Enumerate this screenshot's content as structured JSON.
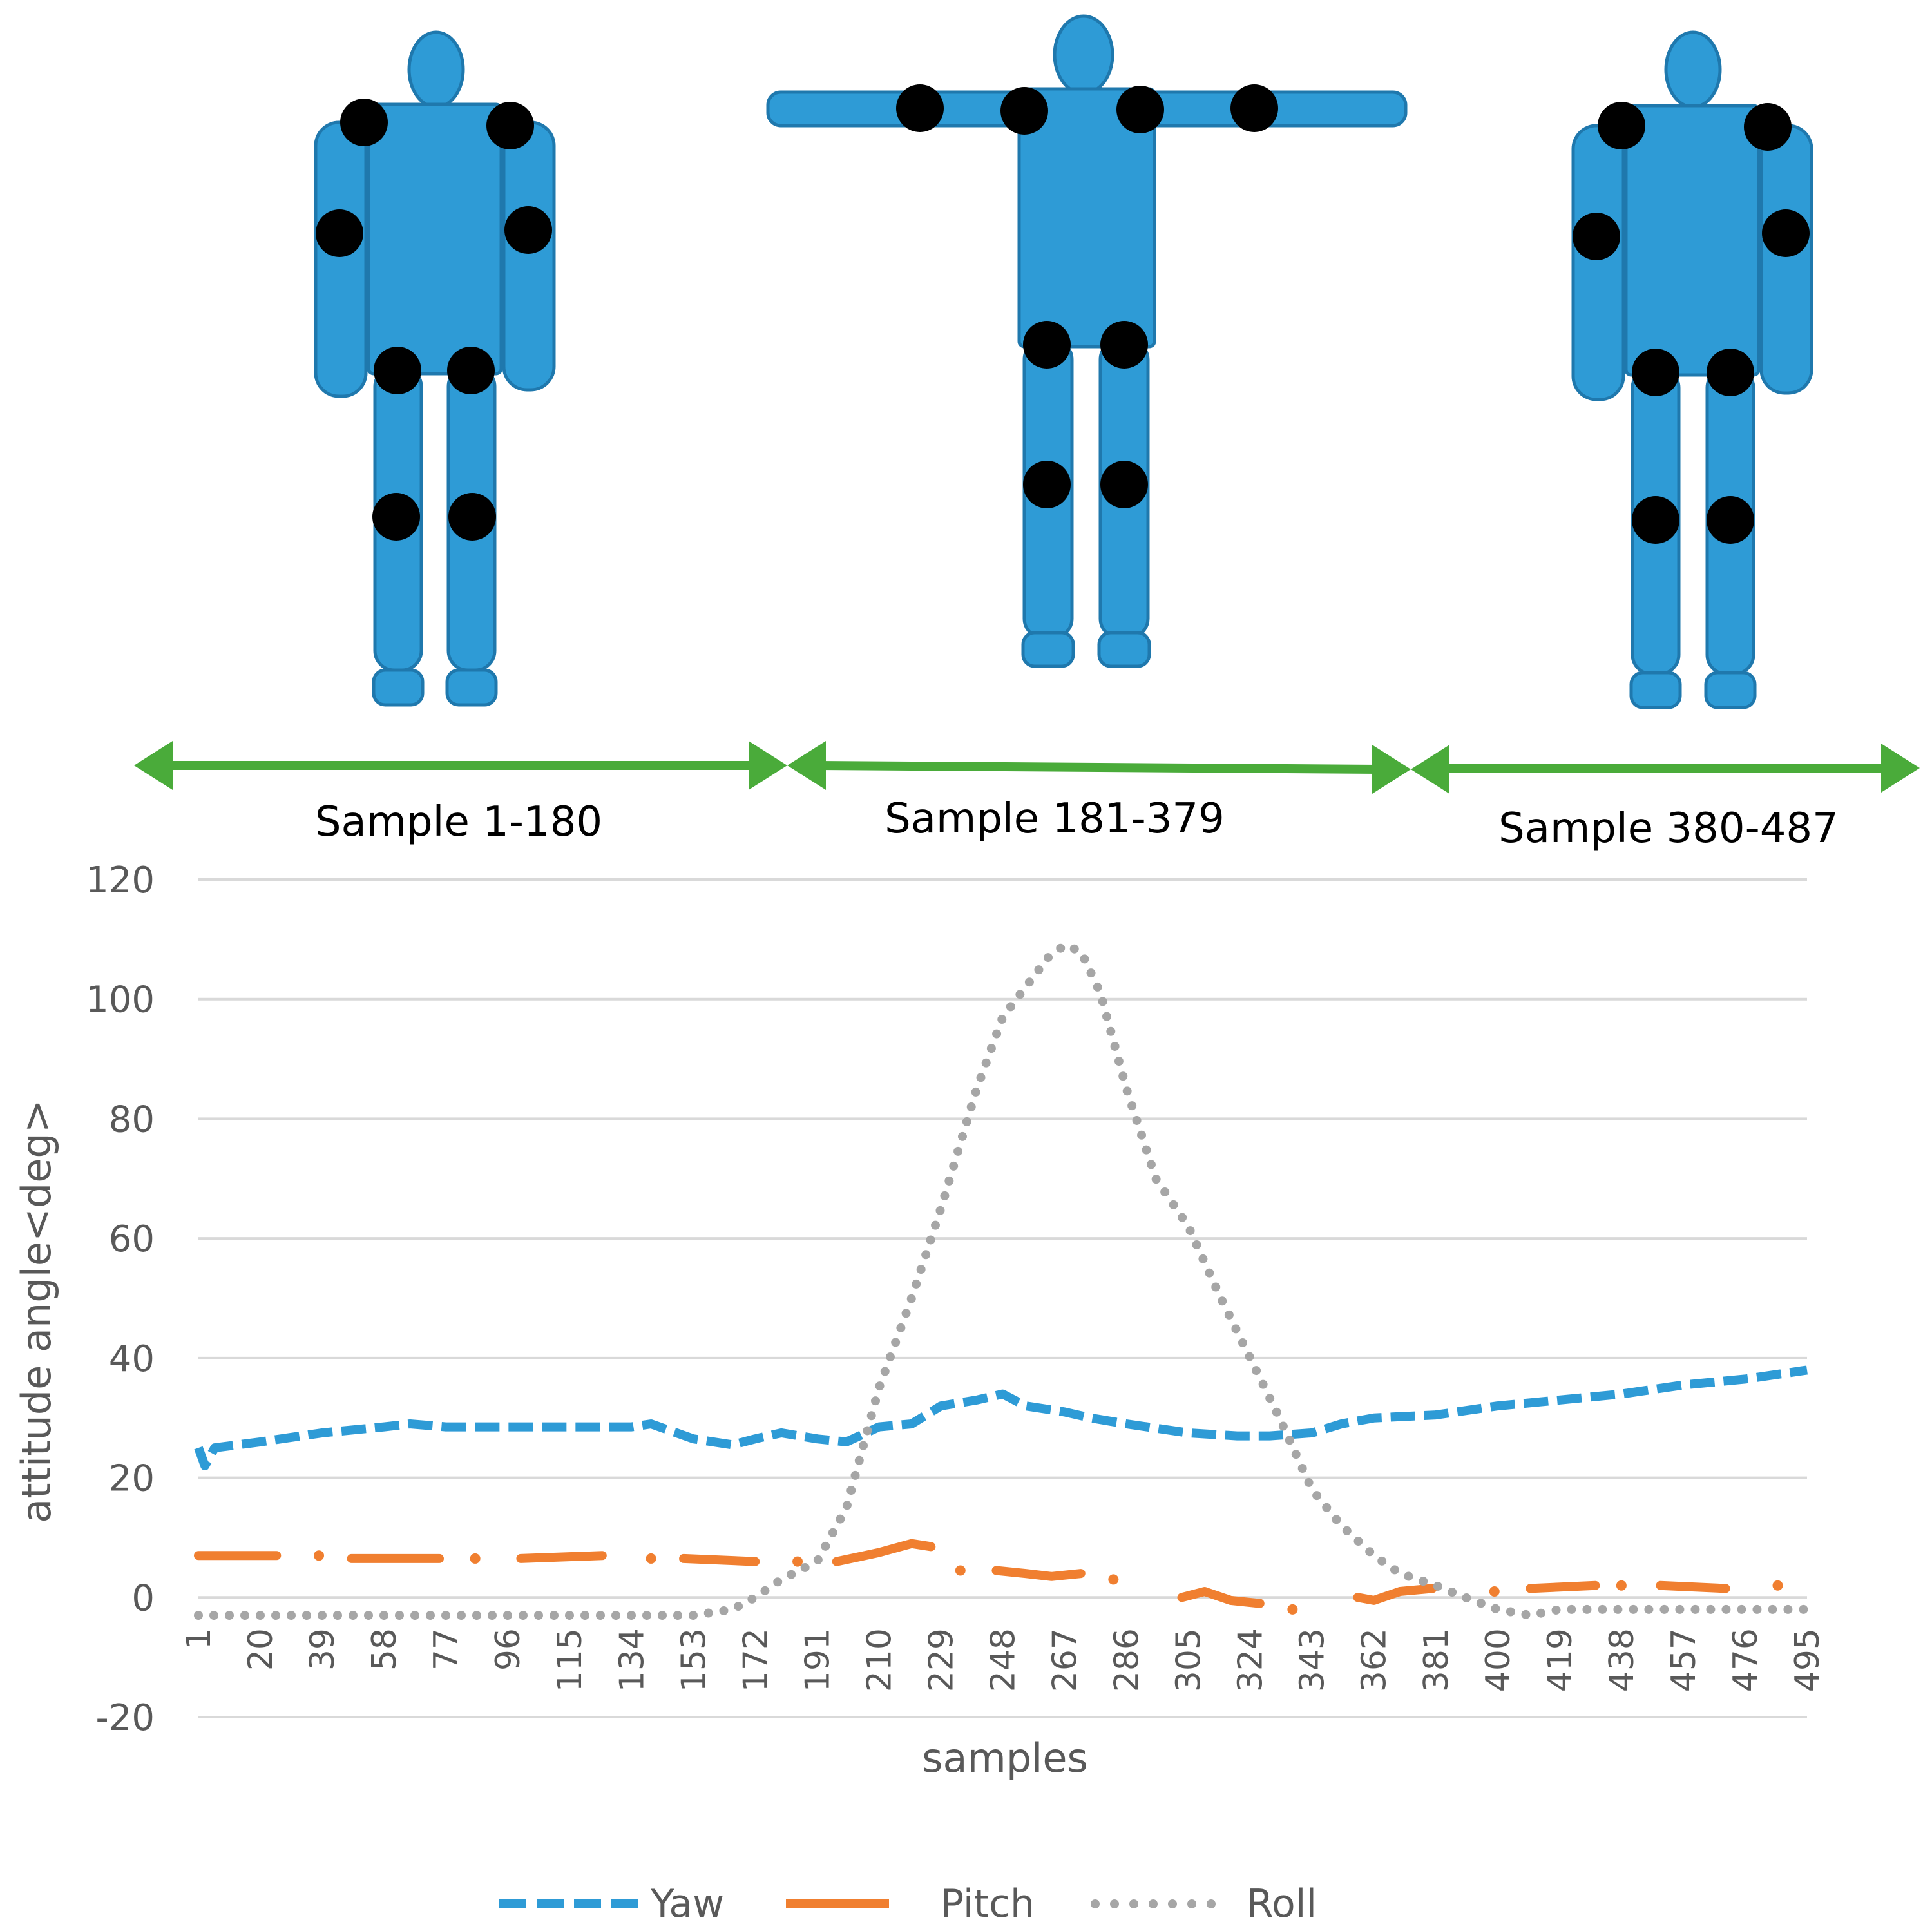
{
  "segments": [
    {
      "label": "Sample 1-180"
    },
    {
      "label": "Sample 181-379"
    },
    {
      "label": "Sample 380-487"
    }
  ],
  "colors": {
    "body": "#2e9bd6",
    "body_outline": "#1f78ad",
    "joint": "#000000",
    "arrow": "#4aab3a",
    "yaw": "#2e9bd6",
    "pitch": "#f07f30",
    "roll": "#a6a6a6",
    "grid": "#d9d9d9",
    "tick_text": "#595959"
  },
  "chart_data": {
    "type": "line",
    "xlabel": "samples",
    "ylabel": "attitude angle<deg>",
    "ylim": [
      -20,
      120
    ],
    "yticks": [
      "120",
      "100",
      "80",
      "60",
      "40",
      "20",
      "0",
      "-20"
    ],
    "xlim": [
      1,
      495
    ],
    "xticks": [
      "1",
      "20",
      "39",
      "58",
      "77",
      "96",
      "115",
      "134",
      "153",
      "172",
      "191",
      "210",
      "229",
      "248",
      "267",
      "286",
      "305",
      "324",
      "343",
      "362",
      "381",
      "400",
      "419",
      "438",
      "457",
      "476",
      "495"
    ],
    "grid": "horizontal",
    "legend": "bottom",
    "series": [
      {
        "name": "Yaw",
        "style": "dashed",
        "points": [
          [
            1,
            25
          ],
          [
            3,
            22
          ],
          [
            6,
            25
          ],
          [
            20,
            26
          ],
          [
            39,
            27.5
          ],
          [
            58,
            28.5
          ],
          [
            66,
            29
          ],
          [
            77,
            28.5
          ],
          [
            96,
            28.5
          ],
          [
            115,
            28.5
          ],
          [
            134,
            28.5
          ],
          [
            140,
            29
          ],
          [
            153,
            26.5
          ],
          [
            165,
            25.5
          ],
          [
            172,
            26.5
          ],
          [
            180,
            27.5
          ],
          [
            191,
            26.5
          ],
          [
            200,
            26
          ],
          [
            210,
            28.5
          ],
          [
            220,
            29
          ],
          [
            229,
            32
          ],
          [
            240,
            33
          ],
          [
            248,
            34
          ],
          [
            255,
            32
          ],
          [
            267,
            31
          ],
          [
            275,
            30
          ],
          [
            286,
            29
          ],
          [
            305,
            27.5
          ],
          [
            320,
            27
          ],
          [
            330,
            27
          ],
          [
            343,
            27.5
          ],
          [
            352,
            29
          ],
          [
            362,
            30
          ],
          [
            381,
            30.5
          ],
          [
            400,
            32
          ],
          [
            419,
            33
          ],
          [
            438,
            34
          ],
          [
            457,
            35.5
          ],
          [
            476,
            36.5
          ],
          [
            495,
            38
          ]
        ]
      },
      {
        "name": "Pitch",
        "style": "solid",
        "points": [
          [
            1,
            7
          ],
          [
            25,
            7
          ],
          [
            null,
            null
          ],
          [
            38,
            7
          ],
          [
            null,
            null
          ],
          [
            48,
            6.5
          ],
          [
            75,
            6.5
          ],
          [
            null,
            null
          ],
          [
            86,
            6.5
          ],
          [
            null,
            null
          ],
          [
            100,
            6.5
          ],
          [
            125,
            7
          ],
          [
            null,
            null
          ],
          [
            140,
            6.5
          ],
          [
            null,
            null
          ],
          [
            150,
            6.5
          ],
          [
            172,
            6
          ],
          [
            null,
            null
          ],
          [
            185,
            6
          ],
          [
            null,
            null
          ],
          [
            197,
            6
          ],
          [
            210,
            7.5
          ],
          [
            220,
            9
          ],
          [
            226,
            8.5
          ],
          [
            null,
            null
          ],
          [
            235,
            4.5
          ],
          [
            null,
            null
          ],
          [
            246,
            4.5
          ],
          [
            255,
            4
          ],
          [
            263,
            3.5
          ],
          [
            272,
            4
          ],
          [
            null,
            null
          ],
          [
            282,
            3
          ],
          [
            null,
            null
          ],
          [
            303,
            0
          ],
          [
            310,
            1
          ],
          [
            318,
            -0.5
          ],
          [
            327,
            -1
          ],
          [
            null,
            null
          ],
          [
            337,
            -2
          ],
          [
            null,
            null
          ],
          [
            357,
            0
          ],
          [
            362,
            -0.5
          ],
          [
            370,
            1
          ],
          [
            380,
            1.5
          ],
          [
            null,
            null
          ],
          [
            399,
            1
          ],
          [
            null,
            null
          ],
          [
            410,
            1.5
          ],
          [
            430,
            2
          ],
          [
            null,
            null
          ],
          [
            438,
            2
          ],
          [
            null,
            null
          ],
          [
            450,
            2
          ],
          [
            470,
            1.5
          ],
          [
            null,
            null
          ],
          [
            486,
            2
          ]
        ]
      },
      {
        "name": "Roll",
        "style": "dotted",
        "points": [
          [
            1,
            -3
          ],
          [
            20,
            -3
          ],
          [
            58,
            -3
          ],
          [
            96,
            -3
          ],
          [
            134,
            -3
          ],
          [
            153,
            -3
          ],
          [
            165,
            -2
          ],
          [
            172,
            0
          ],
          [
            180,
            3
          ],
          [
            191,
            6
          ],
          [
            200,
            15
          ],
          [
            210,
            35
          ],
          [
            220,
            50
          ],
          [
            229,
            65
          ],
          [
            240,
            85
          ],
          [
            248,
            97
          ],
          [
            255,
            102
          ],
          [
            262,
            107
          ],
          [
            267,
            109
          ],
          [
            272,
            108
          ],
          [
            278,
            101
          ],
          [
            286,
            85
          ],
          [
            295,
            70
          ],
          [
            305,
            62
          ],
          [
            315,
            50
          ],
          [
            324,
            40
          ],
          [
            333,
            30
          ],
          [
            343,
            18
          ],
          [
            352,
            12
          ],
          [
            362,
            7
          ],
          [
            370,
            4
          ],
          [
            381,
            2
          ],
          [
            390,
            0
          ],
          [
            400,
            -2
          ],
          [
            410,
            -3
          ],
          [
            419,
            -2
          ],
          [
            438,
            -2
          ],
          [
            457,
            -2
          ],
          [
            476,
            -2
          ],
          [
            495,
            -2
          ]
        ]
      }
    ]
  }
}
